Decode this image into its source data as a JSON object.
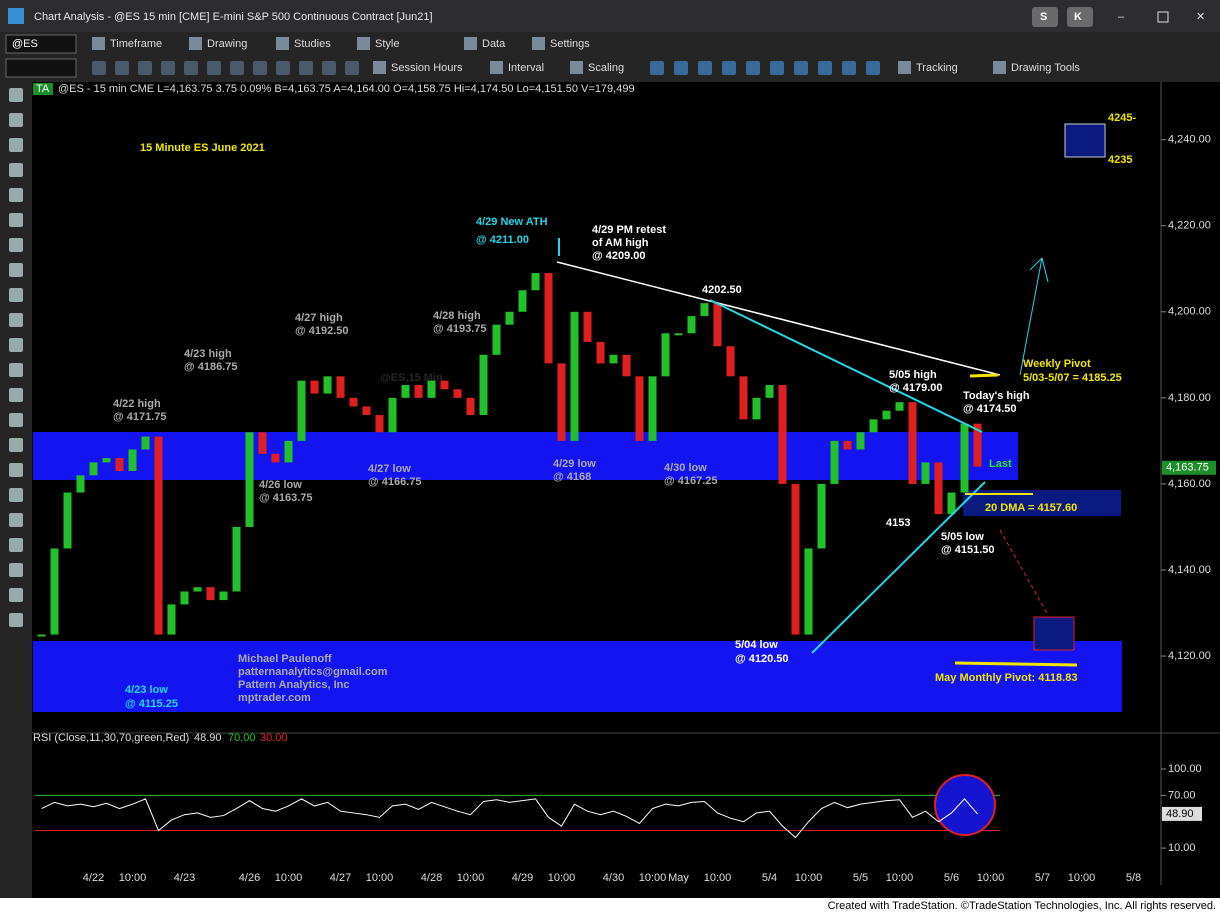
{
  "window": {
    "title": "Chart Analysis - @ES 15 min [CME] E-mini S&P 500 Continuous Contract [Jun21]",
    "buttons": [
      "S",
      "K"
    ]
  },
  "toolbar": {
    "symbol": "@ES",
    "row1": [
      "Timeframe",
      "Drawing",
      "Studies",
      "Style",
      "Data",
      "Settings"
    ],
    "row2": [
      "Session Hours",
      "Interval",
      "Scaling",
      "Tracking",
      "Drawing Tools"
    ]
  },
  "info": {
    "badge": "TA",
    "text": "@ES - 15 min  CME  L=4,163.75  3.75  0.09%  B=4,163.75  A=4,164.00  O=4,158.75  Hi=4,174.50  Lo=4,151.50  V=179,499"
  },
  "footer": "Created with TradeStation. ©TradeStation Technologies, Inc. All rights reserved.",
  "chart_data": [
    {
      "type": "candlestick",
      "title": "15 Minute ES June 2021",
      "watermark": "@ES,15 Min",
      "categories": [
        null,
        null,
        null,
        null,
        "4/22",
        null,
        null,
        "10:00",
        null,
        null,
        null,
        "4/23",
        null,
        null,
        null,
        null,
        "4/26",
        null,
        null,
        "10:00",
        null,
        null,
        null,
        "4/27",
        null,
        null,
        "10:00",
        null,
        null,
        null,
        "4/28",
        null,
        null,
        "10:00",
        null,
        null,
        null,
        "4/29",
        null,
        null,
        "10:00",
        null,
        null,
        null,
        "4/30",
        null,
        null,
        "10:00",
        null,
        "May",
        null,
        null,
        "10:00",
        null,
        null,
        null,
        "5/4",
        null,
        null,
        "10:00",
        null,
        null,
        null,
        "5/5",
        null,
        null,
        "10:00",
        null,
        null,
        null,
        "5/6",
        null,
        null,
        "10:00",
        null,
        null,
        null,
        "5/7",
        null,
        null,
        "10:00",
        null,
        null,
        null,
        "5/8",
        null
      ],
      "values": [
        4125,
        4145,
        4158,
        4162,
        4165,
        4166,
        4163,
        4168,
        4171,
        4125,
        4132,
        4135,
        4136,
        4133,
        4135,
        4150,
        4172,
        4167,
        4165,
        4170,
        4184,
        4181,
        4185,
        4180,
        4178,
        4176,
        4172,
        4180,
        4183,
        4180,
        4184,
        4182,
        4180,
        4176,
        4190,
        4197,
        4200,
        4205,
        4209,
        4188,
        4170,
        4200,
        4193,
        4188,
        4190,
        4185,
        4170,
        4185,
        4195,
        4195,
        4199,
        4202,
        4192,
        4185,
        4175,
        4180,
        4183,
        4160,
        4125,
        4145,
        4160,
        4170,
        4168,
        4172,
        4175,
        4177,
        4179,
        4160,
        4165,
        4153,
        4158,
        4174,
        4164,
        null,
        null,
        null,
        null,
        null,
        null,
        null,
        null,
        null,
        null,
        null,
        null,
        null
      ],
      "up_color": "#22c02a",
      "down_color": "#e02020",
      "ylim": [
        4107,
        4252
      ],
      "yticks": [
        {
          "value": 4120,
          "label": "4,120.00"
        },
        {
          "value": 4140,
          "label": "4,140.00"
        },
        {
          "value": 4160,
          "label": "4,160.00"
        },
        {
          "value": 4180,
          "label": "4,180.00"
        },
        {
          "value": 4200,
          "label": "4,200.00"
        },
        {
          "value": 4220,
          "label": "4,220.00"
        },
        {
          "value": 4240,
          "label": "4,240.00"
        }
      ],
      "last_price": {
        "value": 4163.75,
        "label": "4,163.75"
      },
      "annotations": [
        "4/29 New ATH",
        "@ 4211.00",
        "4/29 PM retest",
        "of AM high",
        "@ 4209.00",
        "4202.50",
        "4/27 high",
        "@ 4192.50",
        "4/28 high",
        "@ 4193.75",
        "4/23 high",
        "@ 4186.75",
        "4/22 high",
        "@ 4171.75",
        "4/27 low",
        "@ 4166.75",
        "4/26 low",
        "@ 4163.75",
        "4/29 low",
        "@ 4168",
        "4/30 low",
        "@ 4167.25",
        "5/05 high",
        "@ 4179.00",
        "Today's high",
        "@ 4174.50",
        "Weekly Pivot",
        "5/03-5/07 = 4185.25",
        "Last",
        "20 DMA = 4157.60",
        "4153",
        "5/05 low",
        "@ 4151.50",
        "5/04 low",
        "@ 4120.50",
        "May Monthly Pivot: 4118.83",
        "Michael Paulenoff",
        "patternanalytics@gmail.com",
        "Pattern Analytics, Inc",
        "mptrader.com",
        "4/23 low",
        "@ 4115.25",
        "4245-",
        "4235"
      ]
    },
    {
      "type": "line",
      "title": "RSI (Close,11,30,70,green,Red)",
      "legend": [
        "48.90",
        "70.00",
        "30.00"
      ],
      "values": [
        55,
        62,
        58,
        60,
        57,
        61,
        55,
        60,
        66,
        30,
        42,
        48,
        50,
        45,
        47,
        55,
        64,
        55,
        52,
        58,
        66,
        58,
        62,
        52,
        50,
        48,
        45,
        58,
        60,
        54,
        62,
        57,
        52,
        48,
        63,
        65,
        62,
        64,
        66,
        45,
        35,
        60,
        52,
        48,
        52,
        46,
        38,
        55,
        60,
        58,
        62,
        63,
        50,
        44,
        40,
        50,
        52,
        35,
        22,
        40,
        55,
        62,
        56,
        60,
        62,
        64,
        65,
        45,
        52,
        40,
        50,
        66,
        48.9
      ],
      "color": "#ffffff",
      "overbought": 70,
      "oversold": 30,
      "overbought_color": "#22c02a",
      "oversold_color": "#e02020",
      "ylim": [
        -32,
        133
      ],
      "yticks": [
        {
          "value": 10,
          "label": "10.00"
        },
        {
          "value": 70,
          "label": "70.00"
        },
        {
          "value": 100,
          "label": "100.00"
        }
      ],
      "last_value": {
        "value": 48.9,
        "label": "48.90"
      }
    }
  ]
}
